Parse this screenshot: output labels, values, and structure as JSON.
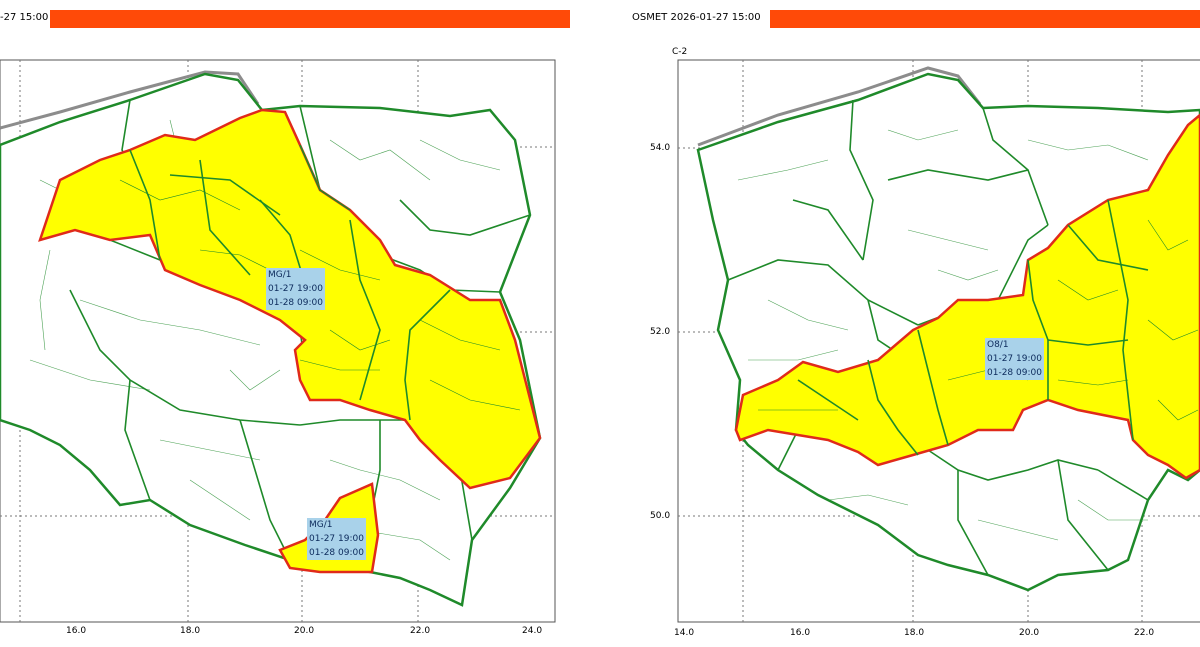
{
  "colors": {
    "header_bar": "#ff4a08",
    "warning_fill": "#ffff00",
    "warning_border": "#e02a1a",
    "boundary": "#1f8a2a",
    "label_bg": "#a9d2ea",
    "coast": "#8c8c8c"
  },
  "left": {
    "header": "-27 15:00",
    "axis_x_ticks": [
      "16.0",
      "18.0",
      "20.0",
      "22.0",
      "24.0"
    ],
    "warnings": [
      {
        "code": "MG/1",
        "from": "01-27 19:00",
        "to": "01-28 09:00"
      },
      {
        "code": "MG/1",
        "from": "01-27 19:00",
        "to": "01-28 09:00"
      }
    ]
  },
  "right": {
    "header": "OSMET 2026-01-27 15:00",
    "panel_code": "C-2",
    "axis_x_ticks": [
      "14.0",
      "16.0",
      "18.0",
      "20.0",
      "22.0"
    ],
    "axis_y_ticks": [
      "54.0",
      "52.0",
      "50.0"
    ],
    "warnings": [
      {
        "code": "O8/1",
        "from": "01-27 19:00",
        "to": "01-28 09:00"
      }
    ]
  }
}
